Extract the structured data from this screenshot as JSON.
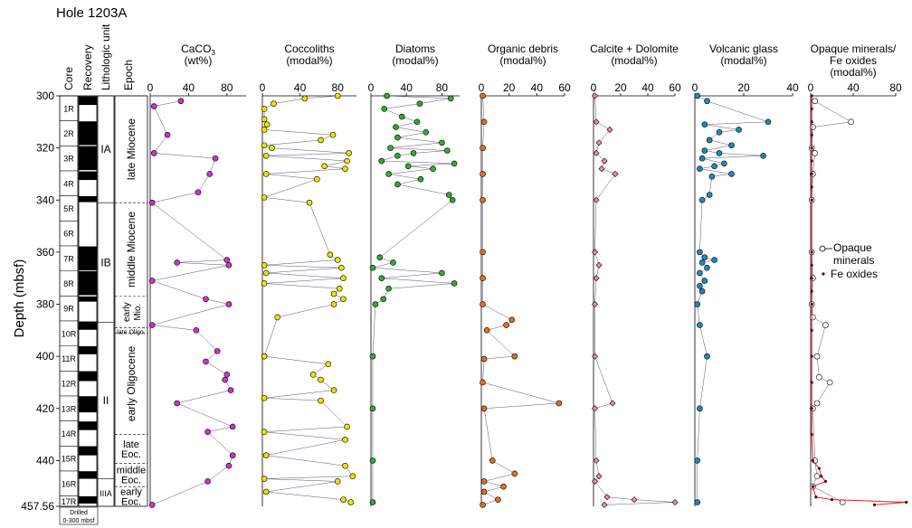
{
  "title": "Hole 1203A",
  "depth_axis": {
    "label": "Depth (mbsf)",
    "ticks": [
      "300",
      "320",
      "340",
      "360",
      "380",
      "400",
      "420",
      "440",
      "457.56"
    ],
    "values": [
      300,
      320,
      340,
      360,
      380,
      400,
      420,
      440,
      457.56
    ],
    "range": [
      300,
      457.56
    ]
  },
  "column_headers": {
    "core": "Core",
    "recovery": "Recovery",
    "lith": "Lithologic unit",
    "epoch": "Epoch"
  },
  "cores": [
    {
      "label": "1R",
      "top": 300.0,
      "bottom": 309.6
    },
    {
      "label": "2R",
      "top": 309.6,
      "bottom": 319.2
    },
    {
      "label": "3R",
      "top": 319.2,
      "bottom": 328.8
    },
    {
      "label": "4R",
      "top": 328.8,
      "bottom": 338.4
    },
    {
      "label": "5R",
      "top": 338.4,
      "bottom": 348.0
    },
    {
      "label": "6R",
      "top": 348.0,
      "bottom": 357.6
    },
    {
      "label": "7R",
      "top": 357.6,
      "bottom": 367.2
    },
    {
      "label": "8R",
      "top": 367.2,
      "bottom": 376.8
    },
    {
      "label": "9R",
      "top": 376.8,
      "bottom": 386.4
    },
    {
      "label": "10R",
      "top": 386.4,
      "bottom": 396.0
    },
    {
      "label": "11R",
      "top": 396.0,
      "bottom": 405.6
    },
    {
      "label": "12R",
      "top": 405.6,
      "bottom": 415.2
    },
    {
      "label": "13R",
      "top": 415.2,
      "bottom": 424.8
    },
    {
      "label": "14R",
      "top": 424.8,
      "bottom": 434.4
    },
    {
      "label": "15R",
      "top": 434.4,
      "bottom": 444.0
    },
    {
      "label": "16R",
      "top": 444.0,
      "bottom": 453.6
    },
    {
      "label": "17R",
      "top": 453.6,
      "bottom": 457.56
    }
  ],
  "recovery": [
    [
      300.2,
      303.5
    ],
    [
      309.8,
      318.9
    ],
    [
      319.3,
      328.5
    ],
    [
      329.0,
      332.3
    ],
    [
      338.5,
      340.8
    ],
    [
      357.8,
      367.0
    ],
    [
      367.3,
      376.5
    ],
    [
      377.0,
      379.0
    ],
    [
      386.6,
      389.8
    ],
    [
      396.1,
      399.2
    ],
    [
      405.7,
      409.5
    ],
    [
      415.3,
      421.5
    ],
    [
      425.0,
      428.3
    ],
    [
      434.5,
      438.0
    ],
    [
      444.1,
      447.0
    ],
    [
      453.7,
      456.5
    ]
  ],
  "drilled_label": [
    "Drilled",
    "0-300 mbsf"
  ],
  "lith_units": [
    {
      "label": "IA",
      "top": 300,
      "bottom": 341
    },
    {
      "label": "IB",
      "top": 341,
      "bottom": 387
    },
    {
      "label": "II",
      "top": 387,
      "bottom": 447
    },
    {
      "label": "IIIA",
      "top": 447,
      "bottom": 457.56
    }
  ],
  "epochs": [
    {
      "lines": [
        "late Miocene"
      ],
      "top": 300,
      "bottom": 341,
      "rotate": true
    },
    {
      "lines": [
        "middle Miocene"
      ],
      "top": 341,
      "bottom": 377,
      "rotate": true
    },
    {
      "lines": [
        "early",
        "Mio."
      ],
      "top": 377,
      "bottom": 389,
      "rotate": true
    },
    {
      "lines": [
        "late Oligo."
      ],
      "top": 389,
      "bottom": 391,
      "rotate": false
    },
    {
      "lines": [
        "early Oligocene"
      ],
      "top": 391,
      "bottom": 430,
      "rotate": true
    },
    {
      "lines": [
        "late",
        "Eoc."
      ],
      "top": 430,
      "bottom": 441,
      "rotate": false
    },
    {
      "lines": [
        "middle",
        "Eoc."
      ],
      "top": 441,
      "bottom": 450,
      "rotate": false
    },
    {
      "lines": [
        "early",
        "Eoc."
      ],
      "top": 450,
      "bottom": 457.56,
      "rotate": false
    }
  ],
  "legend": {
    "opaque": [
      "Opaque",
      "minerals"
    ],
    "fe": "Fe oxides"
  },
  "chart_data": [
    {
      "type": "scatter",
      "title_lines": [
        "CaCO",
        "(wt%)"
      ],
      "title_sub": "3",
      "xlim": [
        0,
        100
      ],
      "xticks": [
        0,
        40,
        80
      ],
      "color": "#cc33cc",
      "depth": [
        302,
        304,
        315,
        322,
        324,
        330,
        337,
        341,
        363,
        364,
        365,
        371,
        378,
        380,
        388,
        390,
        398,
        402,
        407,
        409,
        413,
        418,
        427,
        429,
        438,
        442,
        448,
        457
      ],
      "values": [
        32,
        4,
        18,
        4,
        68,
        62,
        50,
        2,
        80,
        28,
        82,
        2,
        58,
        82,
        2,
        48,
        70,
        58,
        80,
        78,
        84,
        28,
        86,
        60,
        86,
        82,
        60,
        2
      ]
    },
    {
      "type": "scatter",
      "title_lines": [
        "Coccoliths",
        "(modal%)"
      ],
      "xlim": [
        0,
        100
      ],
      "xticks": [
        0,
        40,
        80
      ],
      "color": "#e6e600",
      "depth": [
        300,
        301,
        303,
        305,
        309,
        311,
        313,
        315,
        317,
        319,
        320,
        322,
        323,
        325,
        327,
        328,
        330,
        332,
        339,
        341,
        361,
        363,
        365,
        366,
        368,
        370,
        372,
        374,
        376,
        378,
        380,
        385,
        400,
        403,
        407,
        409,
        413,
        416,
        417,
        427,
        429,
        432,
        438,
        442,
        446,
        447,
        448,
        452,
        455,
        456
      ],
      "values": [
        80,
        45,
        12,
        2,
        2,
        5,
        2,
        75,
        62,
        2,
        10,
        92,
        4,
        90,
        66,
        88,
        4,
        58,
        2,
        50,
        72,
        80,
        2,
        84,
        4,
        86,
        2,
        82,
        76,
        86,
        76,
        16,
        2,
        70,
        54,
        62,
        76,
        2,
        62,
        90,
        2,
        88,
        4,
        88,
        96,
        2,
        80,
        4,
        86,
        94
      ]
    },
    {
      "type": "scatter",
      "title_lines": [
        "Diatoms",
        "(modal%)"
      ],
      "xlim": [
        0,
        100
      ],
      "xticks": [
        0,
        40,
        80
      ],
      "color": "#33aa33",
      "depth": [
        300,
        301,
        303,
        305,
        308,
        310,
        312,
        314,
        316,
        318,
        320,
        321,
        322,
        323,
        325,
        326,
        327,
        328,
        330,
        332,
        334,
        338,
        340,
        362,
        364,
        366,
        368,
        370,
        372,
        374,
        378,
        380,
        400,
        420,
        440,
        456
      ],
      "values": [
        18,
        90,
        55,
        15,
        35,
        52,
        28,
        62,
        30,
        80,
        22,
        86,
        48,
        30,
        12,
        94,
        42,
        70,
        20,
        56,
        30,
        88,
        92,
        10,
        25,
        2,
        80,
        12,
        94,
        20,
        14,
        5,
        2,
        2,
        2,
        2
      ]
    },
    {
      "type": "scatter",
      "title_lines": [
        "Organic debris",
        "(modal%)"
      ],
      "xlim": [
        0,
        60
      ],
      "xticks": [
        0,
        20,
        40,
        60
      ],
      "color": "#e07020",
      "depth": [
        300,
        310,
        320,
        330,
        340,
        360,
        370,
        380,
        386,
        388,
        390,
        400,
        401,
        410,
        418,
        420,
        440,
        445,
        448,
        450,
        452,
        455,
        457
      ],
      "values": [
        1,
        2,
        1,
        1,
        1,
        1,
        1,
        1,
        22,
        18,
        4,
        24,
        2,
        1,
        56,
        2,
        8,
        24,
        2,
        16,
        2,
        12,
        1
      ]
    },
    {
      "type": "scatter",
      "title_lines": [
        "Calcite + Dolomite",
        "(modal%)"
      ],
      "xlim": [
        0,
        60
      ],
      "xticks": [
        0,
        20,
        40,
        60
      ],
      "color": "#e890a0",
      "depth": [
        300,
        310,
        313,
        318,
        322,
        325,
        328,
        330,
        340,
        360,
        365,
        370,
        380,
        400,
        418,
        420,
        440,
        446,
        448,
        454,
        455,
        456,
        457
      ],
      "values": [
        1,
        2,
        12,
        4,
        2,
        8,
        6,
        16,
        2,
        1,
        4,
        2,
        1,
        1,
        14,
        1,
        2,
        4,
        1,
        10,
        30,
        60,
        8
      ]
    },
    {
      "type": "scatter",
      "title_lines": [
        "Volcanic glass",
        "(modal%)"
      ],
      "xlim": [
        0,
        40
      ],
      "xticks": [
        0,
        20,
        40
      ],
      "color": "#2288bb",
      "depth": [
        300,
        302,
        310,
        311,
        313,
        314,
        317,
        319,
        321,
        322,
        323,
        324,
        326,
        327,
        328,
        330,
        331,
        338,
        340,
        360,
        362,
        363,
        364,
        366,
        368,
        371,
        373,
        375,
        380,
        388,
        400,
        420,
        440,
        456
      ],
      "values": [
        1,
        5,
        30,
        4,
        18,
        10,
        6,
        15,
        4,
        10,
        28,
        3,
        12,
        8,
        2,
        15,
        7,
        6,
        3,
        2,
        4,
        8,
        3,
        5,
        2,
        4,
        2,
        3,
        1,
        2,
        5,
        2,
        1,
        1
      ]
    },
    {
      "type": "scatter",
      "title_lines": [
        "Opaque minerals/",
        "Fe oxides",
        "(modal%)"
      ],
      "xlim": [
        0,
        80
      ],
      "xticks": [
        0,
        40,
        80
      ],
      "color": "#ffffff",
      "series": [
        {
          "name": "Opaque minerals",
          "color": "#ffffff",
          "depth": [
            302,
            310,
            312,
            320,
            322,
            330,
            340,
            360,
            370,
            380,
            385,
            388,
            400,
            408,
            410,
            418,
            420,
            440,
            446,
            450,
            456
          ],
          "values": [
            4,
            38,
            2,
            1,
            4,
            2,
            1,
            1,
            2,
            1,
            2,
            14,
            6,
            8,
            18,
            6,
            2,
            4,
            6,
            2,
            30
          ]
        },
        {
          "name": "Fe oxides",
          "color": "#660000",
          "depth": [
            300,
            305,
            310,
            315,
            320,
            325,
            330,
            335,
            340,
            360,
            365,
            370,
            375,
            380,
            390,
            400,
            410,
            420,
            430,
            440,
            443,
            446,
            448,
            450,
            454,
            455,
            456,
            457
          ],
          "values": [
            1,
            1,
            1,
            1,
            1,
            1,
            1,
            1,
            1,
            1,
            1,
            1,
            1,
            1,
            1,
            1,
            1,
            1,
            1,
            2,
            8,
            10,
            14,
            2,
            5,
            20,
            90,
            60
          ]
        }
      ]
    }
  ]
}
